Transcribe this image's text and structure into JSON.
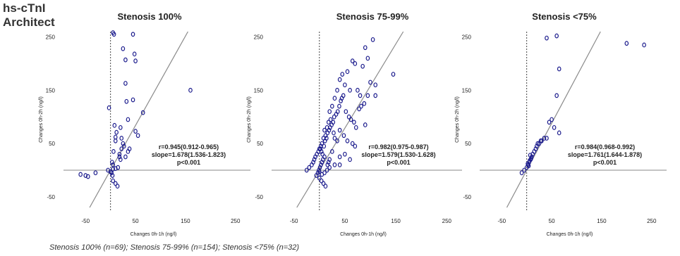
{
  "header": {
    "line1": "hs-cTnI",
    "line2": "Architect"
  },
  "footnote": "Stenosis 100% (n=69); Stenosis 75-99% (n=154); Stenosis <75% (n=32)",
  "colors": {
    "point": "#1a1a8c",
    "line": "#8a8a8a",
    "axis": "#8a8a8a",
    "text": "#222222"
  },
  "chart_data": [
    {
      "type": "scatter",
      "title": "Stenosis 100%",
      "xlabel": "Changes 0h-1h (ng/l)",
      "ylabel": "Changes 0h-2h (ng/l)",
      "xlim": [
        -80,
        280
      ],
      "ylim": [
        -70,
        260
      ],
      "xticks": [
        "-50",
        "50",
        "150",
        "250"
      ],
      "yticks": [
        "250",
        "150",
        "50",
        "-50"
      ],
      "annotation": [
        "r=0.945(0.912-0.965)",
        "slope=1.678(1.536-1.823)",
        "p<0.001"
      ],
      "regression": {
        "slope": 1.678,
        "intercept": 0
      },
      "series": [
        {
          "x": [
            -3,
            5,
            7,
            25,
            30,
            45,
            48,
            50,
            30,
            32,
            35,
            45,
            20,
            8,
            12,
            10,
            50,
            55,
            65,
            25,
            22,
            18,
            27,
            30,
            3,
            5,
            15,
            10,
            5,
            -5,
            0,
            2,
            4,
            -60,
            -50,
            -45,
            -30,
            5,
            10,
            14,
            6,
            20,
            160,
            10,
            22,
            18,
            35,
            38
          ],
          "y": [
            117,
            258,
            255,
            228,
            207,
            255,
            218,
            205,
            163,
            129,
            95,
            132,
            80,
            84,
            71,
            62,
            73,
            65,
            108,
            50,
            40,
            30,
            45,
            25,
            15,
            10,
            5,
            3,
            2,
            0,
            -3,
            -5,
            -10,
            -8,
            -10,
            -12,
            -5,
            -20,
            -25,
            -30,
            35,
            20,
            150,
            55,
            60,
            25,
            35,
            40
          ]
        }
      ]
    },
    {
      "type": "scatter",
      "title": "Stenosis 75-99%",
      "xlabel": "Changes 0h-1h (ng/l)",
      "ylabel": "Changes 0h-2h (ng/l)",
      "xlim": [
        -80,
        280
      ],
      "ylim": [
        -70,
        260
      ],
      "xticks": [
        "-50",
        "50",
        "150",
        "250"
      ],
      "yticks": [
        "250",
        "150",
        "50",
        "-50"
      ],
      "annotation": [
        "r=0.982(0.975-0.987)",
        "slope=1.579(1.530-1.628)",
        "p<0.001"
      ],
      "regression": {
        "slope": 1.579,
        "intercept": 0
      },
      "series": [
        {
          "x": [
            105,
            90,
            95,
            85,
            70,
            65,
            55,
            45,
            40,
            35,
            50,
            60,
            75,
            80,
            100,
            95,
            110,
            110,
            145,
            20,
            25,
            30,
            22,
            18,
            15,
            10,
            12,
            8,
            5,
            3,
            0,
            -2,
            -5,
            -8,
            -10,
            -12,
            -15,
            -20,
            -25,
            2,
            4,
            6,
            9,
            11,
            14,
            16,
            19,
            21,
            24,
            27,
            29,
            33,
            36,
            39,
            42,
            44,
            47,
            52,
            58,
            62,
            68,
            72,
            78,
            82,
            88,
            30,
            35,
            28,
            40,
            48,
            55,
            65,
            70,
            90,
            20,
            18,
            16,
            10,
            7,
            5,
            3,
            1,
            -1,
            -3,
            -6,
            0,
            4,
            8,
            12,
            25,
            40,
            50,
            60,
            40,
            30,
            20,
            15,
            10,
            5,
            0
          ],
          "y": [
            245,
            230,
            210,
            195,
            200,
            205,
            185,
            180,
            170,
            150,
            160,
            150,
            150,
            140,
            165,
            140,
            160,
            140,
            180,
            110,
            120,
            135,
            95,
            90,
            80,
            75,
            65,
            60,
            50,
            45,
            40,
            35,
            30,
            25,
            20,
            15,
            10,
            5,
            0,
            40,
            35,
            30,
            45,
            55,
            60,
            70,
            75,
            80,
            85,
            90,
            100,
            105,
            110,
            120,
            130,
            135,
            140,
            110,
            100,
            95,
            90,
            80,
            115,
            120,
            125,
            60,
            55,
            70,
            75,
            65,
            55,
            50,
            45,
            85,
            20,
            15,
            10,
            25,
            20,
            15,
            10,
            5,
            0,
            -5,
            -10,
            -15,
            -20,
            -25,
            -30,
            35,
            25,
            30,
            20,
            10,
            10,
            5,
            0,
            -5,
            -8,
            -3
          ]
        }
      ]
    },
    {
      "type": "scatter",
      "title": "Stenosis <75%",
      "xlabel": "Changes 0h-1h (ng/l)",
      "ylabel": "Changes 0h-2h (ng/l)",
      "xlim": [
        -80,
        280
      ],
      "ylim": [
        -70,
        260
      ],
      "xticks": [
        "-50",
        "50",
        "150",
        "250"
      ],
      "yticks": [
        "250",
        "150",
        "50",
        "-50"
      ],
      "annotation": [
        "r=0.984(0.968-0.992)",
        "slope=1.761(1.644-1.878)",
        "p<0.001"
      ],
      "regression": {
        "slope": 1.761,
        "intercept": 0
      },
      "series": [
        {
          "x": [
            40,
            60,
            65,
            200,
            235,
            60,
            55,
            45,
            40,
            30,
            25,
            20,
            15,
            10,
            8,
            5,
            3,
            0,
            -5,
            -10,
            12,
            18,
            22,
            28,
            35,
            50,
            65,
            7,
            2,
            4,
            6,
            9
          ],
          "y": [
            248,
            252,
            190,
            238,
            235,
            140,
            80,
            90,
            60,
            55,
            50,
            45,
            35,
            25,
            20,
            15,
            10,
            5,
            0,
            -5,
            30,
            40,
            50,
            55,
            60,
            95,
            70,
            28,
            12,
            8,
            18,
            22
          ]
        }
      ]
    }
  ]
}
